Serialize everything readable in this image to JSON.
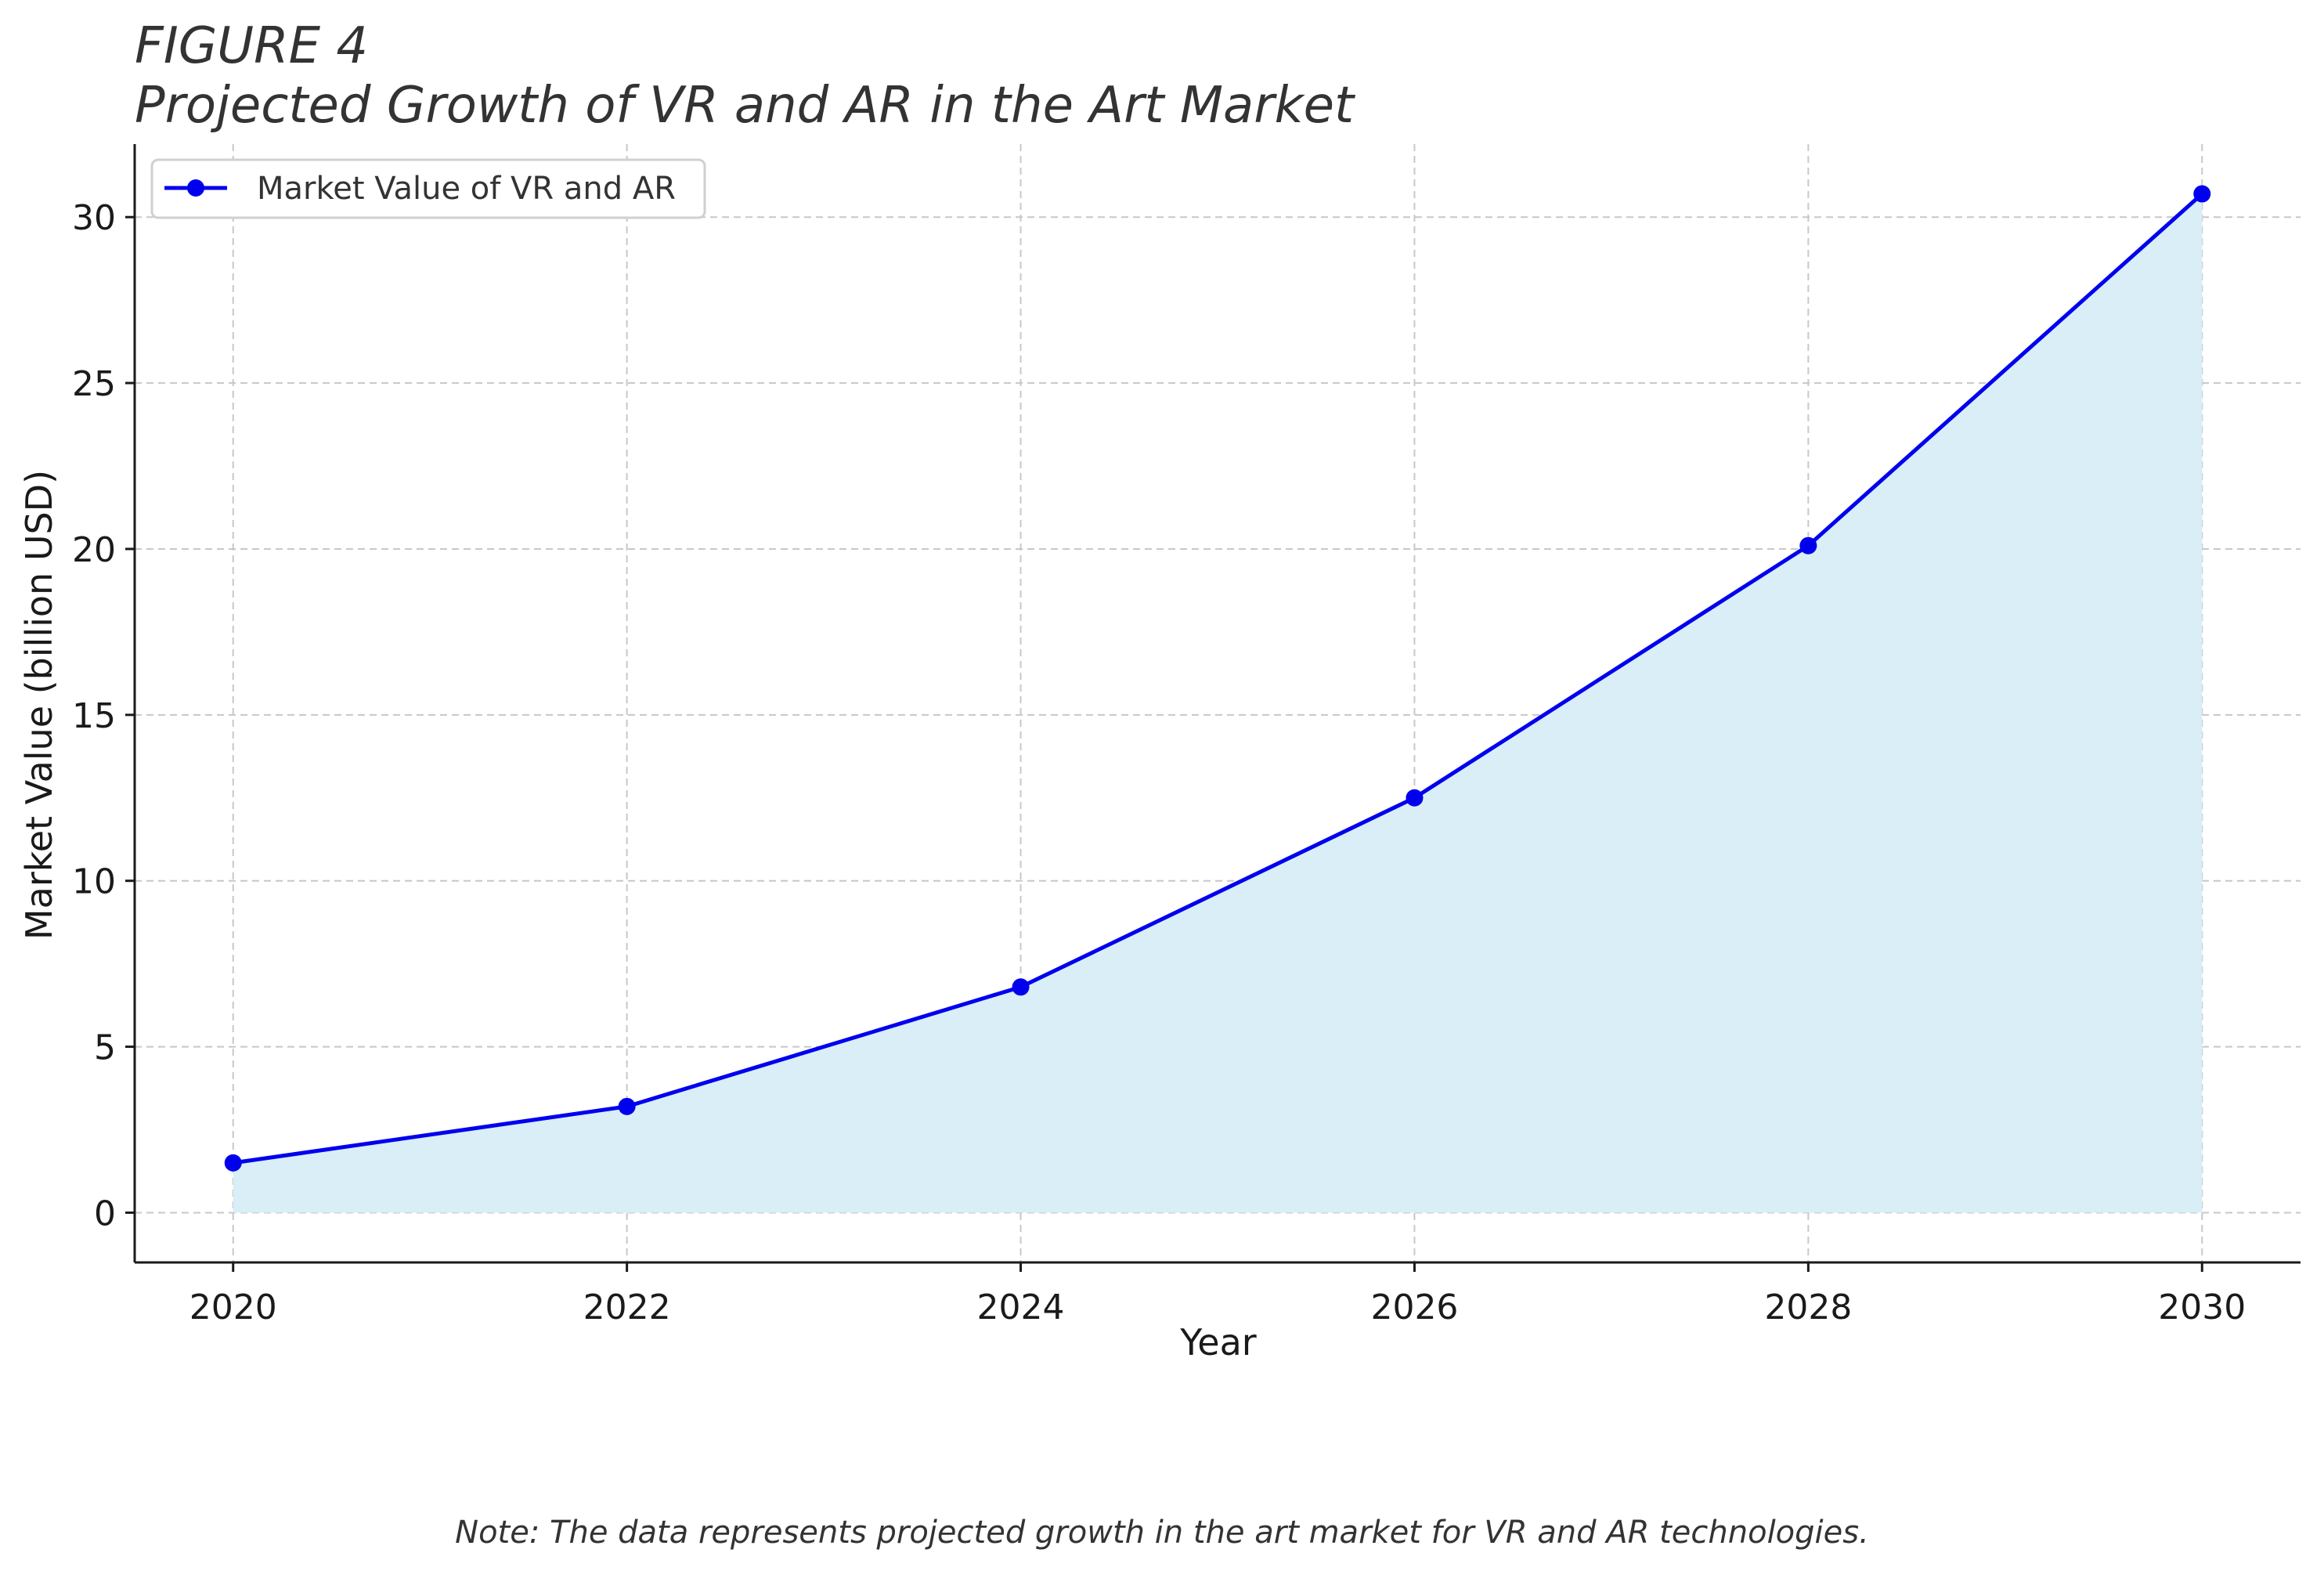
{
  "chart_data": {
    "type": "area",
    "figure_label": "FIGURE 4",
    "title": "Projected Growth of VR and AR in the Art Market",
    "xlabel": "Year",
    "ylabel": "Market Value (billion USD)",
    "x": [
      2020,
      2022,
      2024,
      2026,
      2028,
      2030
    ],
    "x_tick_labels": [
      "2020",
      "2022",
      "2024",
      "2026",
      "2028",
      "2030"
    ],
    "y_ticks": [
      0,
      5,
      10,
      15,
      20,
      25,
      30
    ],
    "y_tick_labels": [
      "0",
      "5",
      "10",
      "15",
      "20",
      "25",
      "30"
    ],
    "xlim": [
      2019.5,
      2030.5
    ],
    "ylim": [
      -1.5,
      32.2
    ],
    "grid": true,
    "legend_position": "top-left",
    "series": [
      {
        "name": "Market Value of VR and AR",
        "values": [
          1.5,
          3.2,
          6.8,
          12.5,
          20.1,
          30.7
        ],
        "line_color": "#0000ee",
        "fill_color": "#d9eef7",
        "marker": "circle"
      }
    ],
    "note": "Note: The data represents projected growth in the art market for VR and AR technologies."
  }
}
